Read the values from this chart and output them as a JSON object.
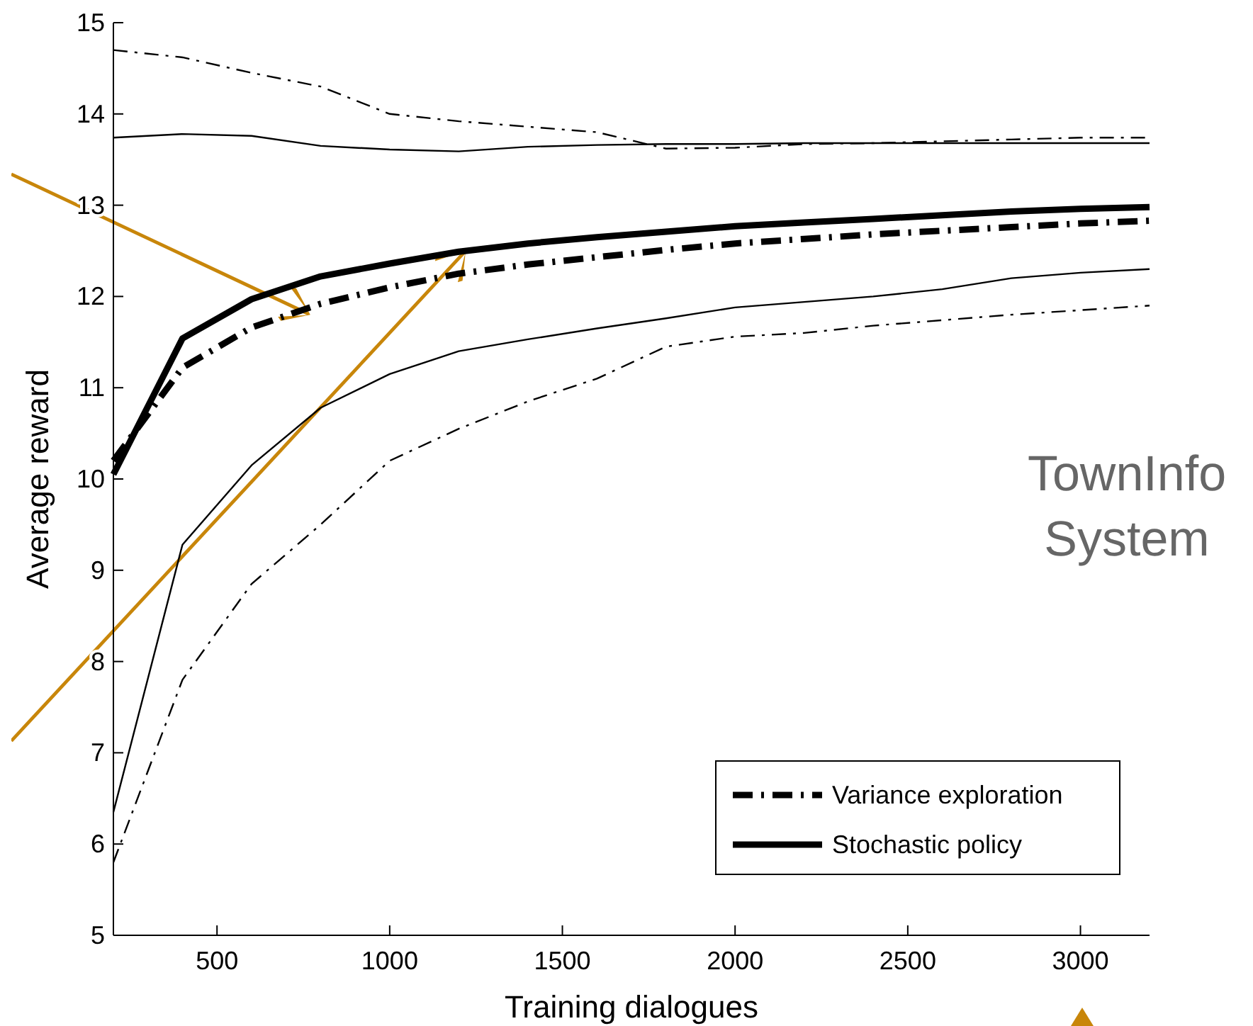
{
  "chart_data": {
    "type": "line",
    "xlabel": "Training dialogues",
    "ylabel": "Average reward",
    "x": [
      200,
      400,
      600,
      800,
      1000,
      1200,
      1400,
      1600,
      1800,
      2000,
      2200,
      2400,
      2600,
      2800,
      3000,
      3200
    ],
    "xlim": [
      200,
      3200
    ],
    "xticks": [
      500,
      1000,
      1500,
      2000,
      2500,
      3000
    ],
    "ylim": [
      5,
      15
    ],
    "yticks": [
      5,
      6,
      7,
      8,
      9,
      10,
      11,
      12,
      13,
      14,
      15
    ],
    "series": [
      {
        "color": "#000000",
        "line_style": "dashed",
        "values": [
          14.7,
          14.62,
          14.45,
          14.3,
          14.0,
          13.92,
          13.86,
          13.8,
          13.62,
          13.63,
          13.67,
          13.68,
          13.7,
          13.72,
          13.74,
          13.74
        ]
      },
      {
        "color": "#000000",
        "line_style": "solid",
        "values": [
          13.74,
          13.78,
          13.76,
          13.65,
          13.61,
          13.59,
          13.64,
          13.66,
          13.67,
          13.67,
          13.68,
          13.68,
          13.68,
          13.68,
          13.68,
          13.68
        ]
      },
      {
        "name": "Variance exploration",
        "color": "#000000",
        "line_style": "dashed",
        "values": [
          10.2,
          11.22,
          11.66,
          11.92,
          12.1,
          12.25,
          12.35,
          12.43,
          12.51,
          12.58,
          12.63,
          12.68,
          12.72,
          12.76,
          12.8,
          12.83
        ]
      },
      {
        "name": "Stochastic policy",
        "color": "#000000",
        "line_style": "solid",
        "values": [
          10.05,
          11.54,
          11.97,
          12.22,
          12.36,
          12.49,
          12.58,
          12.65,
          12.71,
          12.77,
          12.81,
          12.85,
          12.89,
          12.93,
          12.96,
          12.98
        ]
      },
      {
        "color": "#000000",
        "line_style": "solid",
        "values": [
          6.35,
          9.28,
          10.15,
          10.78,
          11.15,
          11.4,
          11.53,
          11.65,
          11.76,
          11.88,
          11.94,
          12.0,
          12.08,
          12.2,
          12.26,
          12.3
        ]
      },
      {
        "color": "#000000",
        "line_style": "dashed",
        "values": [
          5.8,
          7.8,
          8.85,
          9.5,
          10.2,
          10.55,
          10.85,
          11.1,
          11.45,
          11.56,
          11.6,
          11.68,
          11.74,
          11.8,
          11.85,
          11.9
        ]
      }
    ],
    "legend": "bottom right",
    "grid": false,
    "annotations": [
      "TownInfo System"
    ]
  }
}
